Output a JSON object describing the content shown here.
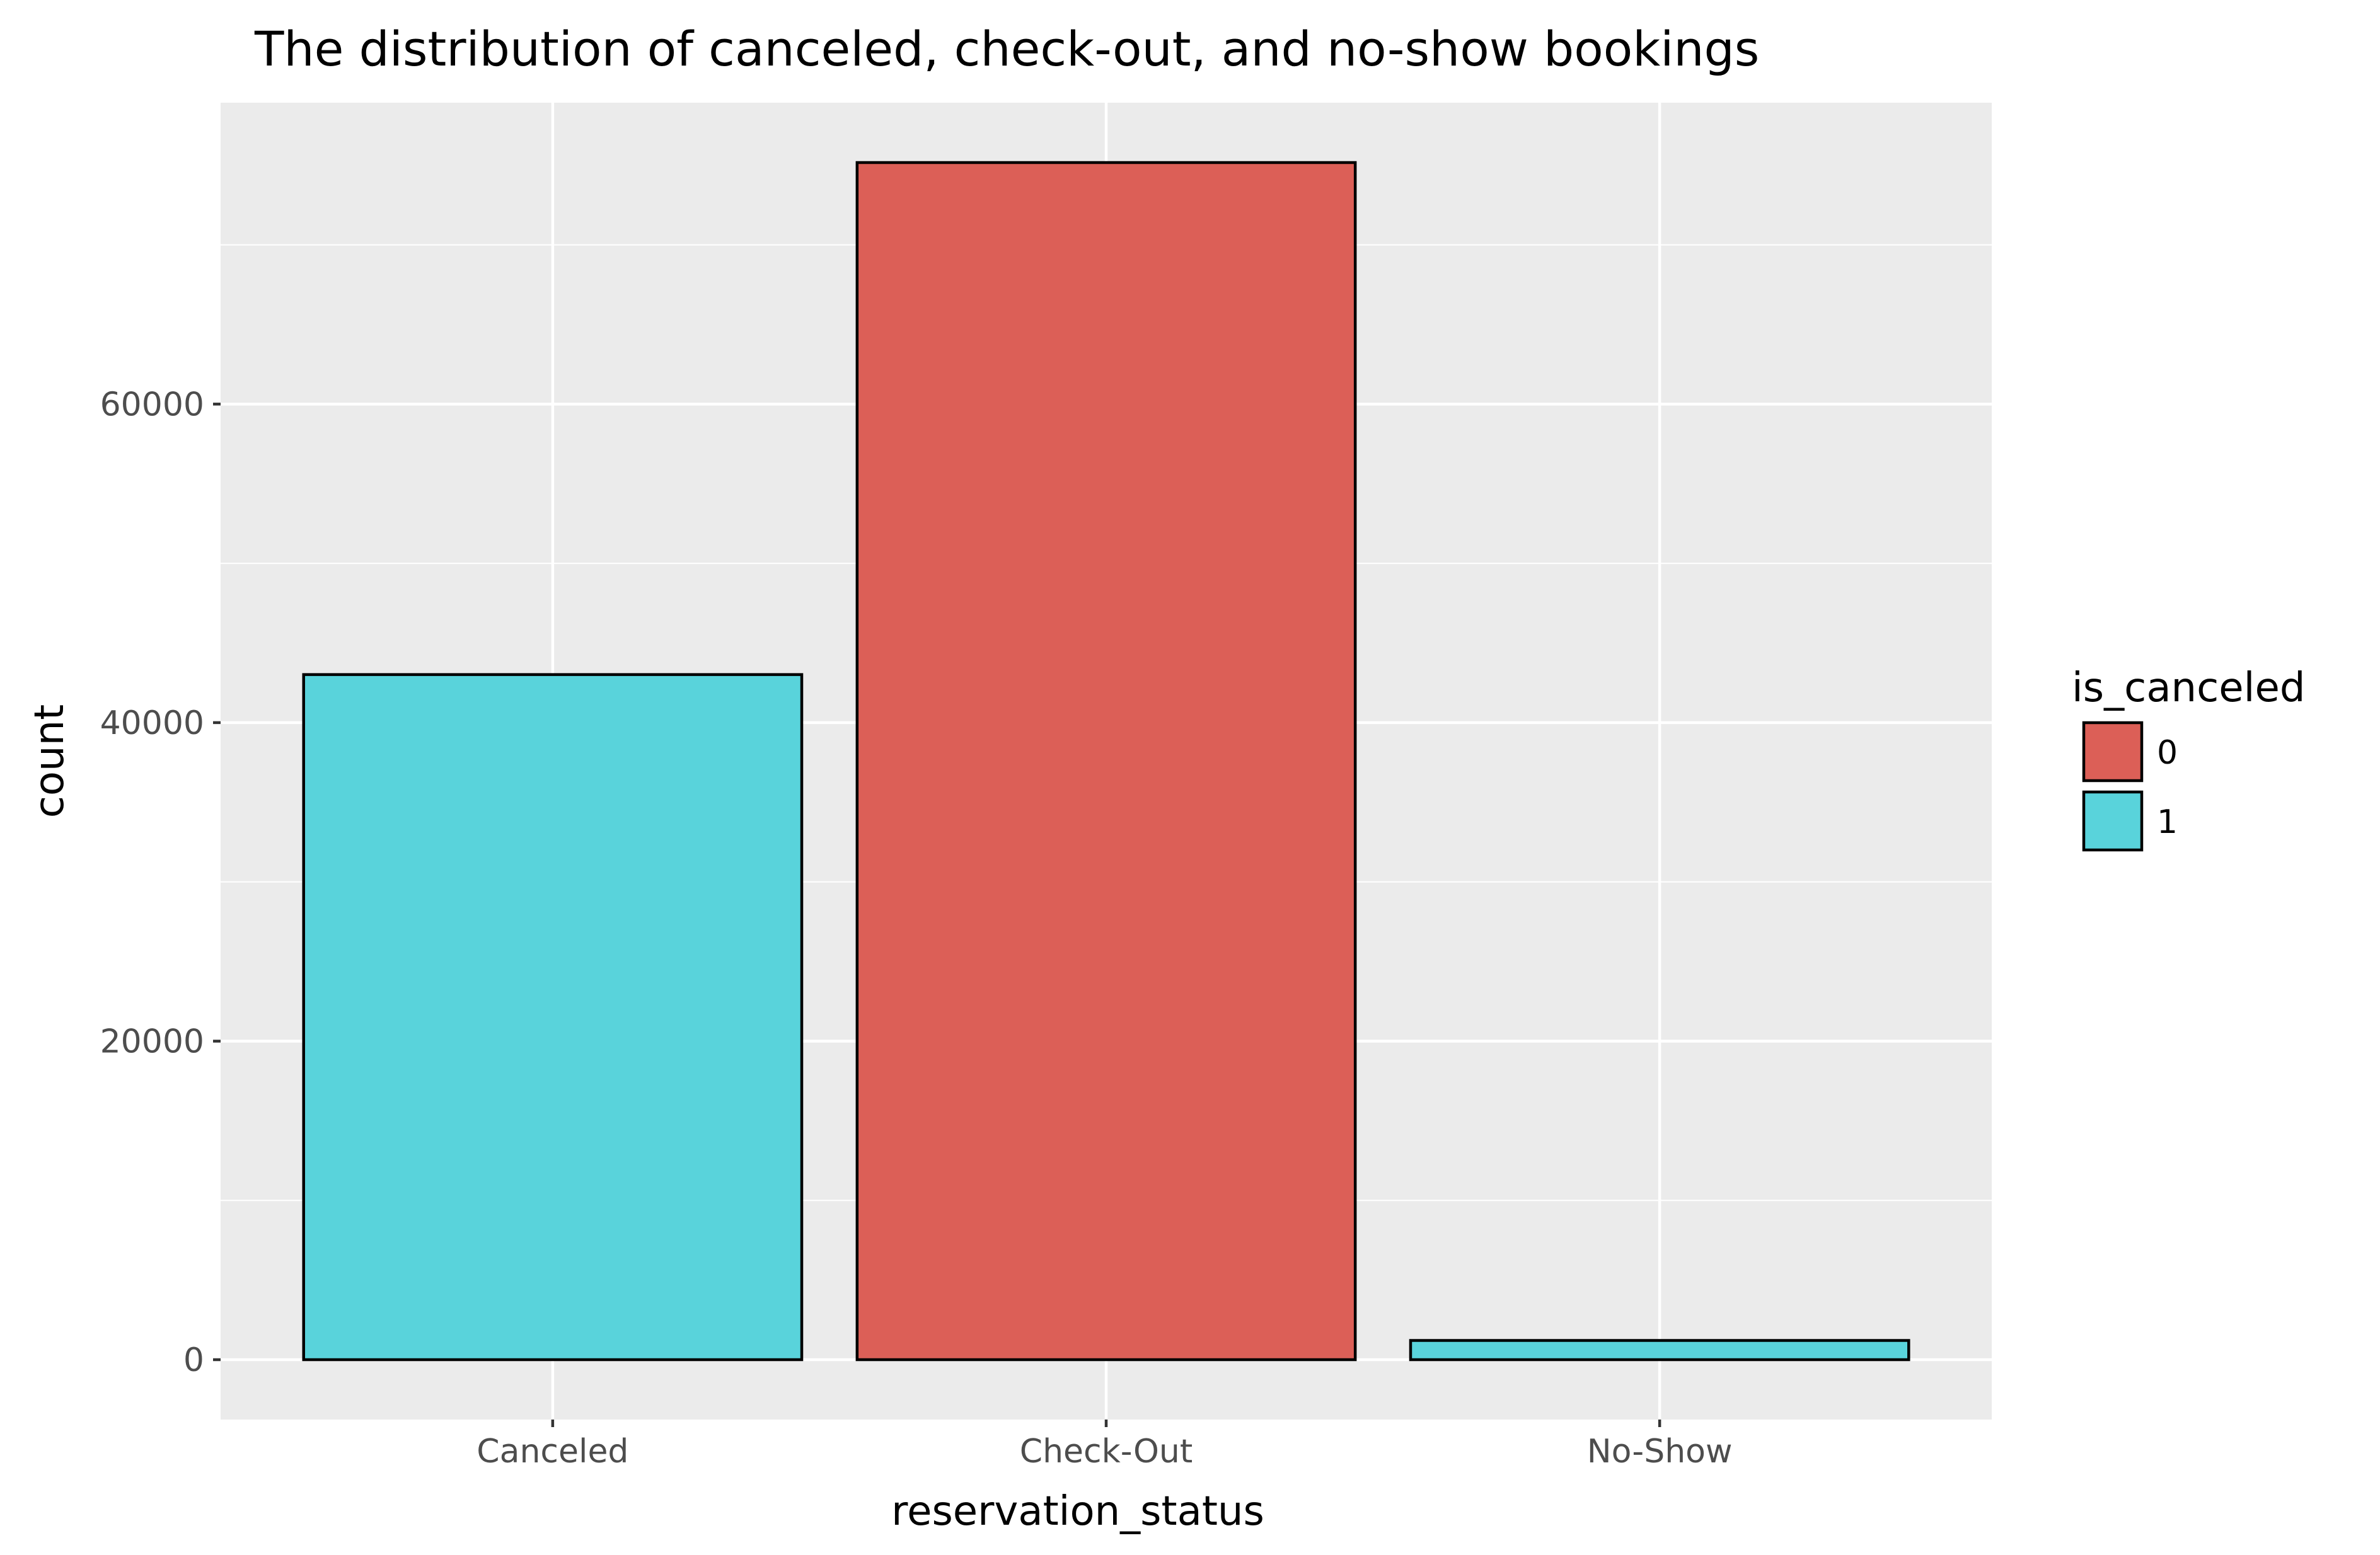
{
  "chart_data": {
    "type": "bar",
    "title": "The distribution of canceled, check-out, and no-show bookings",
    "xlabel": "reservation_status",
    "ylabel": "count",
    "categories": [
      "Canceled",
      "Check-Out",
      "No-Show"
    ],
    "bars": [
      {
        "category": "Canceled",
        "value": 43017,
        "fill_key": "1"
      },
      {
        "category": "Check-Out",
        "value": 75166,
        "fill_key": "0"
      },
      {
        "category": "No-Show",
        "value": 1207,
        "fill_key": "1"
      }
    ],
    "ylim": [
      -3758,
      78924
    ],
    "yticks": [
      0,
      20000,
      40000,
      60000
    ],
    "ytick_labels": [
      "0",
      "20000",
      "40000",
      "60000"
    ],
    "grid": true,
    "legend": {
      "title": "is_canceled",
      "placement": "right",
      "entries": [
        {
          "key": "0",
          "label": "0",
          "color": "#dc5f57"
        },
        {
          "key": "1",
          "label": "1",
          "color": "#59d3db"
        }
      ]
    },
    "colors": {
      "panel_background": "#ebebeb",
      "grid_line": "#ffffff",
      "bar_outline": "#000000",
      "tick_mark": "#333333"
    }
  }
}
